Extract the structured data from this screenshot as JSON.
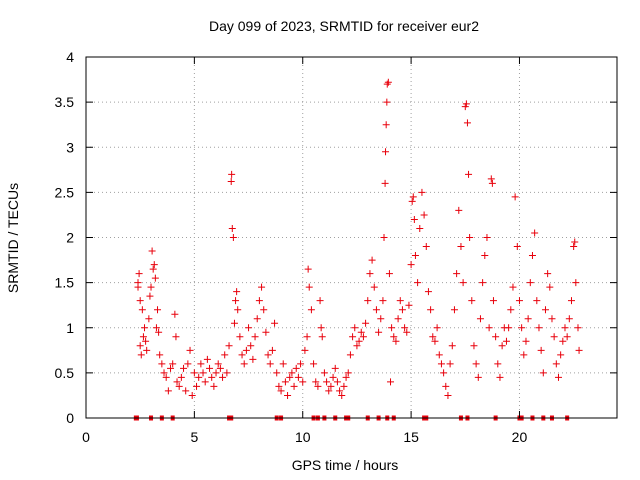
{
  "chart_data": {
    "type": "scatter",
    "title": "Day 099 of 2023, SRMTID for receiver eur2",
    "xlabel": "GPS time / hours",
    "ylabel": "SRMTID / TECUs",
    "xlim": [
      0,
      24.5
    ],
    "ylim": [
      0,
      4
    ],
    "x_ticks": [
      0,
      5,
      10,
      15,
      20
    ],
    "x_tick_labels": [
      "0",
      "5",
      "10",
      "15",
      "20"
    ],
    "y_ticks": [
      0,
      0.5,
      1,
      1.5,
      2,
      2.5,
      3,
      3.5,
      4
    ],
    "y_tick_labels": [
      "0",
      "0.5",
      "1",
      "1.5",
      "2",
      "2.5",
      "3",
      "3.5",
      "4"
    ],
    "grid": true,
    "marker": "+",
    "color": "#e8000b",
    "series": [
      {
        "name": "SRMTID",
        "points": [
          [
            2.4,
            1.5
          ],
          [
            2.4,
            1.45
          ],
          [
            2.45,
            1.6
          ],
          [
            2.5,
            1.3
          ],
          [
            2.5,
            0.8
          ],
          [
            2.55,
            0.7
          ],
          [
            2.6,
            1.2
          ],
          [
            2.65,
            0.9
          ],
          [
            2.7,
            1.0
          ],
          [
            2.75,
            0.85
          ],
          [
            2.8,
            0.75
          ],
          [
            2.9,
            1.1
          ],
          [
            2.95,
            1.35
          ],
          [
            3.0,
            1.45
          ],
          [
            3.05,
            1.85
          ],
          [
            3.1,
            1.65
          ],
          [
            3.15,
            1.7
          ],
          [
            3.2,
            1.55
          ],
          [
            3.25,
            1.0
          ],
          [
            3.3,
            1.2
          ],
          [
            3.35,
            0.95
          ],
          [
            3.4,
            0.7
          ],
          [
            3.5,
            0.6
          ],
          [
            3.6,
            0.5
          ],
          [
            3.7,
            0.45
          ],
          [
            3.8,
            0.3
          ],
          [
            3.9,
            0.55
          ],
          [
            4.0,
            0.6
          ],
          [
            4.1,
            1.15
          ],
          [
            4.15,
            0.9
          ],
          [
            4.2,
            0.4
          ],
          [
            4.3,
            0.35
          ],
          [
            4.4,
            0.45
          ],
          [
            4.5,
            0.55
          ],
          [
            4.6,
            0.3
          ],
          [
            4.7,
            0.6
          ],
          [
            4.8,
            0.75
          ],
          [
            4.9,
            0.25
          ],
          [
            5.0,
            0.5
          ],
          [
            5.1,
            0.35
          ],
          [
            5.2,
            0.45
          ],
          [
            5.3,
            0.6
          ],
          [
            5.4,
            0.5
          ],
          [
            5.5,
            0.4
          ],
          [
            5.6,
            0.65
          ],
          [
            5.7,
            0.55
          ],
          [
            5.8,
            0.45
          ],
          [
            5.9,
            0.35
          ],
          [
            6.0,
            0.5
          ],
          [
            6.1,
            0.6
          ],
          [
            6.2,
            0.55
          ],
          [
            6.3,
            0.45
          ],
          [
            6.4,
            0.7
          ],
          [
            6.5,
            0.5
          ],
          [
            6.6,
            0.8
          ],
          [
            6.7,
            2.62
          ],
          [
            6.72,
            2.7
          ],
          [
            6.75,
            2.1
          ],
          [
            6.8,
            2.0
          ],
          [
            6.85,
            1.05
          ],
          [
            6.9,
            1.3
          ],
          [
            6.95,
            1.4
          ],
          [
            7.0,
            1.2
          ],
          [
            7.1,
            0.9
          ],
          [
            7.2,
            0.7
          ],
          [
            7.3,
            0.6
          ],
          [
            7.4,
            0.75
          ],
          [
            7.5,
            1.0
          ],
          [
            7.6,
            0.8
          ],
          [
            7.7,
            0.65
          ],
          [
            7.8,
            0.9
          ],
          [
            7.9,
            1.1
          ],
          [
            8.0,
            1.3
          ],
          [
            8.1,
            1.45
          ],
          [
            8.2,
            1.2
          ],
          [
            8.3,
            0.95
          ],
          [
            8.4,
            0.7
          ],
          [
            8.5,
            0.6
          ],
          [
            8.6,
            0.75
          ],
          [
            8.7,
            1.05
          ],
          [
            8.8,
            0.5
          ],
          [
            8.9,
            0.35
          ],
          [
            9.0,
            0.3
          ],
          [
            9.1,
            0.6
          ],
          [
            9.2,
            0.4
          ],
          [
            9.3,
            0.25
          ],
          [
            9.4,
            0.45
          ],
          [
            9.5,
            0.5
          ],
          [
            9.6,
            0.35
          ],
          [
            9.7,
            0.55
          ],
          [
            9.8,
            0.45
          ],
          [
            9.9,
            0.6
          ],
          [
            10.0,
            0.4
          ],
          [
            10.1,
            0.75
          ],
          [
            10.2,
            0.9
          ],
          [
            10.25,
            1.65
          ],
          [
            10.3,
            1.45
          ],
          [
            10.4,
            1.2
          ],
          [
            10.5,
            0.6
          ],
          [
            10.6,
            0.4
          ],
          [
            10.7,
            0.35
          ],
          [
            10.8,
            1.3
          ],
          [
            10.85,
            1.0
          ],
          [
            10.9,
            0.9
          ],
          [
            11.0,
            0.5
          ],
          [
            11.1,
            0.4
          ],
          [
            11.2,
            0.3
          ],
          [
            11.3,
            0.35
          ],
          [
            11.4,
            0.45
          ],
          [
            11.5,
            0.55
          ],
          [
            11.6,
            0.4
          ],
          [
            11.7,
            0.3
          ],
          [
            11.8,
            0.25
          ],
          [
            11.9,
            0.35
          ],
          [
            12.0,
            0.45
          ],
          [
            12.1,
            0.5
          ],
          [
            12.2,
            0.7
          ],
          [
            12.3,
            0.9
          ],
          [
            12.4,
            1.0
          ],
          [
            12.5,
            0.8
          ],
          [
            12.6,
            0.85
          ],
          [
            12.7,
            0.95
          ],
          [
            12.8,
            0.9
          ],
          [
            12.9,
            1.05
          ],
          [
            13.0,
            1.3
          ],
          [
            13.1,
            1.6
          ],
          [
            13.2,
            1.75
          ],
          [
            13.3,
            1.45
          ],
          [
            13.4,
            1.2
          ],
          [
            13.5,
            0.95
          ],
          [
            13.6,
            1.1
          ],
          [
            13.7,
            1.3
          ],
          [
            13.75,
            2.0
          ],
          [
            13.8,
            2.6
          ],
          [
            13.82,
            2.95
          ],
          [
            13.85,
            3.25
          ],
          [
            13.88,
            3.5
          ],
          [
            13.9,
            3.7
          ],
          [
            13.95,
            3.72
          ],
          [
            14.0,
            1.6
          ],
          [
            14.05,
            0.4
          ],
          [
            14.1,
            1.0
          ],
          [
            14.2,
            0.9
          ],
          [
            14.3,
            0.85
          ],
          [
            14.4,
            1.1
          ],
          [
            14.5,
            1.3
          ],
          [
            14.6,
            1.2
          ],
          [
            14.7,
            1.0
          ],
          [
            14.8,
            0.95
          ],
          [
            14.9,
            1.25
          ],
          [
            15.0,
            1.7
          ],
          [
            15.05,
            2.4
          ],
          [
            15.1,
            2.45
          ],
          [
            15.15,
            2.2
          ],
          [
            15.2,
            1.8
          ],
          [
            15.3,
            1.5
          ],
          [
            15.4,
            2.1
          ],
          [
            15.5,
            2.5
          ],
          [
            15.6,
            2.25
          ],
          [
            15.7,
            1.9
          ],
          [
            15.8,
            1.4
          ],
          [
            15.9,
            1.2
          ],
          [
            16.0,
            0.9
          ],
          [
            16.1,
            0.85
          ],
          [
            16.2,
            1.0
          ],
          [
            16.3,
            0.7
          ],
          [
            16.4,
            0.6
          ],
          [
            16.5,
            0.5
          ],
          [
            16.6,
            0.35
          ],
          [
            16.7,
            0.25
          ],
          [
            16.8,
            0.6
          ],
          [
            16.9,
            0.8
          ],
          [
            17.0,
            1.2
          ],
          [
            17.1,
            1.6
          ],
          [
            17.2,
            2.3
          ],
          [
            17.3,
            1.9
          ],
          [
            17.4,
            1.5
          ],
          [
            17.5,
            3.45
          ],
          [
            17.55,
            3.48
          ],
          [
            17.6,
            3.27
          ],
          [
            17.65,
            2.7
          ],
          [
            17.7,
            2.0
          ],
          [
            17.8,
            1.3
          ],
          [
            17.9,
            0.8
          ],
          [
            18.0,
            0.6
          ],
          [
            18.1,
            0.45
          ],
          [
            18.2,
            1.1
          ],
          [
            18.3,
            1.5
          ],
          [
            18.4,
            1.8
          ],
          [
            18.5,
            2.0
          ],
          [
            18.6,
            1.0
          ],
          [
            18.7,
            2.65
          ],
          [
            18.75,
            2.6
          ],
          [
            18.8,
            1.3
          ],
          [
            18.9,
            0.9
          ],
          [
            19.0,
            0.6
          ],
          [
            19.1,
            0.45
          ],
          [
            19.2,
            0.8
          ],
          [
            19.3,
            1.0
          ],
          [
            19.4,
            0.85
          ],
          [
            19.5,
            1.0
          ],
          [
            19.6,
            1.2
          ],
          [
            19.7,
            1.45
          ],
          [
            19.8,
            2.45
          ],
          [
            19.9,
            1.9
          ],
          [
            20.0,
            1.3
          ],
          [
            20.1,
            1.0
          ],
          [
            20.2,
            0.7
          ],
          [
            20.3,
            0.85
          ],
          [
            20.4,
            1.1
          ],
          [
            20.5,
            1.5
          ],
          [
            20.6,
            1.8
          ],
          [
            20.7,
            2.05
          ],
          [
            20.8,
            1.3
          ],
          [
            20.9,
            1.0
          ],
          [
            21.0,
            0.75
          ],
          [
            21.1,
            0.5
          ],
          [
            21.2,
            1.2
          ],
          [
            21.3,
            1.6
          ],
          [
            21.4,
            1.45
          ],
          [
            21.5,
            1.1
          ],
          [
            21.6,
            0.9
          ],
          [
            21.7,
            0.6
          ],
          [
            21.8,
            0.45
          ],
          [
            21.9,
            0.7
          ],
          [
            22.0,
            0.85
          ],
          [
            22.1,
            1.0
          ],
          [
            22.2,
            0.9
          ],
          [
            22.3,
            1.1
          ],
          [
            22.4,
            1.3
          ],
          [
            22.5,
            1.9
          ],
          [
            22.55,
            1.95
          ],
          [
            22.6,
            1.5
          ],
          [
            22.7,
            1.0
          ],
          [
            22.75,
            0.75
          ],
          [
            2.3,
            0.0
          ],
          [
            2.35,
            0.0
          ],
          [
            3.0,
            0.0
          ],
          [
            3.5,
            0.0
          ],
          [
            4.0,
            0.0
          ],
          [
            6.6,
            0.0
          ],
          [
            6.7,
            0.0
          ],
          [
            8.8,
            0.0
          ],
          [
            9.0,
            0.0
          ],
          [
            10.5,
            0.0
          ],
          [
            10.7,
            0.0
          ],
          [
            11.0,
            0.0
          ],
          [
            11.5,
            0.0
          ],
          [
            12.0,
            0.0
          ],
          [
            12.1,
            0.0
          ],
          [
            13.0,
            0.0
          ],
          [
            13.5,
            0.0
          ],
          [
            13.9,
            0.0
          ],
          [
            14.2,
            0.0
          ],
          [
            15.6,
            0.0
          ],
          [
            15.7,
            0.0
          ],
          [
            17.3,
            0.0
          ],
          [
            17.6,
            0.0
          ],
          [
            18.9,
            0.0
          ],
          [
            20.0,
            0.0
          ],
          [
            20.1,
            0.0
          ],
          [
            20.6,
            0.0
          ],
          [
            21.1,
            0.0
          ],
          [
            21.5,
            0.0
          ],
          [
            22.2,
            0.0
          ]
        ]
      }
    ]
  }
}
